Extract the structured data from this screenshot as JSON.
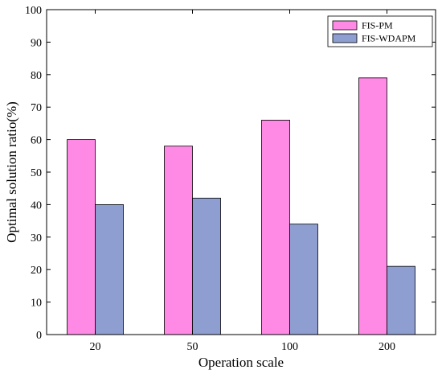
{
  "chart_data": {
    "type": "bar",
    "categories": [
      "20",
      "50",
      "100",
      "200"
    ],
    "series": [
      {
        "name": "FIS-PM",
        "values": [
          60,
          58,
          66,
          79
        ],
        "color": "#ff8ae6"
      },
      {
        "name": "FIS-WDAPM",
        "values": [
          40,
          42,
          34,
          21
        ],
        "color": "#8f9ed0"
      }
    ],
    "title": "",
    "xlabel": "Operation scale",
    "ylabel": "Optimal solution ratio(%)",
    "ylim": [
      0,
      100
    ],
    "yticks": [
      0,
      10,
      20,
      30,
      40,
      50,
      60,
      70,
      80,
      90,
      100
    ],
    "grid": false,
    "legend_position": "top-right"
  }
}
